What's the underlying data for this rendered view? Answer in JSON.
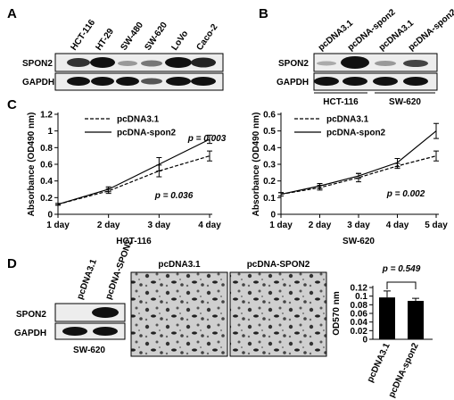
{
  "panel_labels": [
    "A",
    "B",
    "C",
    "D"
  ],
  "blot_a": {
    "lanes": [
      "HCT-116",
      "HT-29",
      "SW-480",
      "SW-620",
      "LoVo",
      "Caco-2"
    ],
    "rows": [
      "SPON2",
      "GAPDH"
    ]
  },
  "blot_b": {
    "lanes": [
      "pcDNA3.1",
      "pcDNA-spon2",
      "pcDNA3.1",
      "pcDNA-spon2"
    ],
    "rows": [
      "SPON2",
      "GAPDH"
    ],
    "groups": [
      "HCT-116",
      "SW-620"
    ]
  },
  "blot_d": {
    "lanes": [
      "pcDNA3.1",
      "pcDNA-SPON2"
    ],
    "rows": [
      "SPON2",
      "GAPDH"
    ],
    "cell_line": "SW-620"
  },
  "images": [
    "pcDNA3.1",
    "pcDNA-SPON2"
  ],
  "chart_data": [
    {
      "type": "line",
      "y_label": "Absorbance (OD490 nm)",
      "x_label": "HCT-116",
      "categories": [
        "1 day",
        "2 day",
        "3 day",
        "4 day"
      ],
      "series": [
        {
          "name": "pcDNA3.1",
          "color": "#000000",
          "dash": true,
          "values": [
            0.12,
            0.28,
            0.52,
            0.7
          ],
          "errors": [
            0.01,
            0.03,
            0.07,
            0.06
          ]
        },
        {
          "name": "pcDNA-spon2",
          "color": "#000000",
          "dash": false,
          "values": [
            0.12,
            0.3,
            0.6,
            0.9
          ],
          "errors": [
            0.01,
            0.03,
            0.08,
            0.05
          ]
        }
      ],
      "ylim": [
        0,
        1.2
      ],
      "yticks": [
        0,
        0.2,
        0.4,
        0.6,
        0.8,
        1,
        1.2
      ],
      "annotations": [
        "p = 0.003",
        "p = 0.036"
      ]
    },
    {
      "type": "line",
      "y_label": "Absorbance (OD490 nm)",
      "x_label": "SW-620",
      "categories": [
        "1 day",
        "2 day",
        "3 day",
        "4 day",
        "5 day"
      ],
      "series": [
        {
          "name": "pcDNA3.1",
          "color": "#000000",
          "dash": true,
          "values": [
            0.12,
            0.16,
            0.22,
            0.29,
            0.35
          ],
          "errors": [
            0.01,
            0.015,
            0.025,
            0.015,
            0.03
          ]
        },
        {
          "name": "pcDNA-spon2",
          "color": "#000000",
          "dash": false,
          "values": [
            0.12,
            0.17,
            0.23,
            0.31,
            0.5
          ],
          "errors": [
            0.01,
            0.015,
            0.015,
            0.025,
            0.045
          ]
        }
      ],
      "ylim": [
        0,
        0.6
      ],
      "yticks": [
        0,
        0.1,
        0.2,
        0.3,
        0.4,
        0.5,
        0.6
      ],
      "annotations": [
        "p = 0.002"
      ]
    },
    {
      "type": "bar",
      "y_label": "OD570 nm",
      "categories": [
        "pcDNA3.1",
        "pcDNA-spon2"
      ],
      "values": [
        0.097,
        0.089
      ],
      "errors": [
        0.015,
        0.006
      ],
      "color": "#000000",
      "ylim": [
        0,
        0.12
      ],
      "yticks": [
        0,
        0.02,
        0.04,
        0.06,
        0.08,
        0.1,
        0.12
      ],
      "annotations": [
        "p = 0.549"
      ]
    }
  ]
}
